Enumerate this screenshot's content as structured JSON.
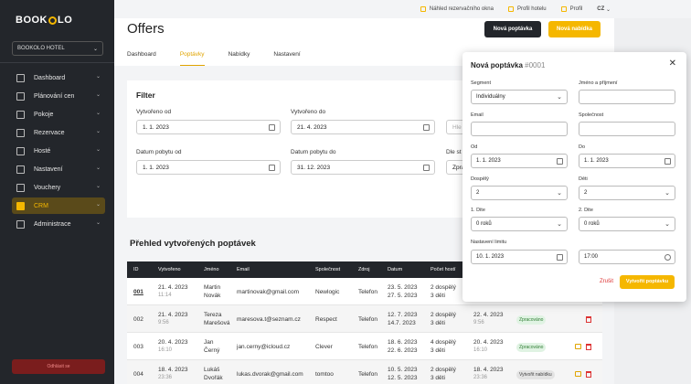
{
  "sidebar": {
    "logo_left": "BOOK",
    "logo_right": "LO",
    "hotel": "BOOKOLO HOTEL",
    "items": [
      {
        "label": "Dashboard",
        "icon": "dashboard-icon"
      },
      {
        "label": "Plánování cen",
        "icon": "globe-icon"
      },
      {
        "label": "Pokoje",
        "icon": "home-icon"
      },
      {
        "label": "Rezervace",
        "icon": "calendar-icon"
      },
      {
        "label": "Hosté",
        "icon": "user-icon"
      },
      {
        "label": "Nastavení",
        "icon": "sliders-icon"
      },
      {
        "label": "Vouchery",
        "icon": "gift-icon"
      },
      {
        "label": "CRM",
        "icon": "crm-icon"
      },
      {
        "label": "Administrace",
        "icon": "globe-icon"
      }
    ],
    "active": "CRM",
    "logout": "Odhlásit se"
  },
  "topbar": {
    "preview": "Náhled rezervačního okna",
    "hotel_profile": "Profil hotelu",
    "profile": "Profil",
    "lang": "CZ"
  },
  "header": {
    "title": "Offers",
    "new_request": "Nová poptávka",
    "new_offer": "Nová nabídka"
  },
  "tabs": [
    "Dashboard",
    "Poptávky",
    "Nabídky",
    "Nastavení"
  ],
  "active_tab": "Poptávky",
  "filter": {
    "title": "Filter",
    "created_from_label": "Vytvořeno od",
    "created_from": "1. 1. 2023",
    "created_to_label": "Vytvořeno do",
    "created_to": "21. 4. 2023",
    "stay_from_label": "Datum pobytu od",
    "stay_from": "1. 1. 2023",
    "stay_to_label": "Datum pobytu do",
    "stay_to": "31. 12. 2023",
    "search_placeholder": "Hle",
    "dle_label": "Dle st",
    "dle_value": "Zpra"
  },
  "list": {
    "title": "Přehled vytvořených poptávek",
    "columns": [
      "ID",
      "Vytvořeno",
      "Jméno",
      "Email",
      "Společnost",
      "Zdroj",
      "Datum",
      "Počet hostí"
    ],
    "rows": [
      {
        "id": "001",
        "created": "21. 4. 2023",
        "created_time": "11:14",
        "first": "Martin",
        "last": "Novák",
        "email": "martinovak@gmail.com",
        "company": "Newlogic",
        "source": "Telefon",
        "date_from": "23. 5. 2023",
        "date_to": "27. 5. 2023",
        "guests1": "2 dospělý",
        "guests2": "3 děti",
        "status_date": "",
        "status_time": "",
        "status": ""
      },
      {
        "id": "002",
        "created": "21. 4. 2023",
        "created_time": "9:56",
        "first": "Tereza",
        "last": "Marešová",
        "email": "maresova.t@seznam.cz",
        "company": "Respect",
        "source": "Telefon",
        "date_from": "12. 7. 2023",
        "date_to": "14.7. 2023",
        "guests1": "2 dospělý",
        "guests2": "3 děti",
        "status_date": "22. 4. 2023",
        "status_time": "9:56",
        "status": "Zpracováno"
      },
      {
        "id": "003",
        "created": "20. 4. 2023",
        "created_time": "16:10",
        "first": "Jan",
        "last": "Černý",
        "email": "jan.cerny@icloud.cz",
        "company": "Clever",
        "source": "Telefon",
        "date_from": "18. 6. 2023",
        "date_to": "22. 6. 2023",
        "guests1": "4 dospělý",
        "guests2": "3 děti",
        "status_date": "20. 4. 2023",
        "status_time": "16:10",
        "status": "Zpracováno"
      },
      {
        "id": "004",
        "created": "18. 4. 2023",
        "created_time": "23:36",
        "first": "Lukáš",
        "last": "Dvořák",
        "email": "lukas.dvorak@gmail.com",
        "company": "tomtoo",
        "source": "Telefon",
        "date_from": "10. 5. 2023",
        "date_to": "12. 5. 2023",
        "guests1": "2 dospělý",
        "guests2": "3 děti",
        "status_date": "18. 4. 2023",
        "status_time": "23:36",
        "status": "Vytvořit nabídku"
      }
    ]
  },
  "modal": {
    "title": "Nová poptávka",
    "number": "#0001",
    "segment_label": "Segment",
    "segment": "Individuálny",
    "name_label": "Jméno a příjmení",
    "name": "",
    "email_label": "Email",
    "email": "",
    "company_label": "Společnost",
    "company": "",
    "from_label": "Od",
    "from": "1. 1. 2023",
    "to_label": "Do",
    "to": "1. 1. 2023",
    "adults_label": "Dospělý",
    "adults": "2",
    "children_label": "Děti",
    "children": "2",
    "child1_label": "1. Dite",
    "child1": "0 roků",
    "child2_label": "2. Dite",
    "child2": "0 roků",
    "limit_label": "Nastavení limitu",
    "limit_date": "10. 1. 2023",
    "limit_time": "17:00",
    "cancel": "Zrušit",
    "submit": "Vytvořit poptávku"
  },
  "colors": {
    "accent": "#f5b700",
    "sidebar": "#23262b",
    "danger": "#d33333"
  }
}
